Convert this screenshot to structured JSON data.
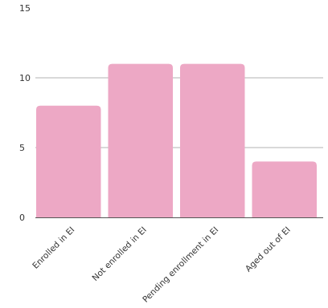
{
  "chart_data": {
    "type": "bar",
    "categories": [
      "Enrolled in EI",
      "Not enrolled in EI",
      "Pending enrollment in EI",
      "Aged out of EI"
    ],
    "values": [
      8,
      11,
      11,
      4
    ],
    "ylim": [
      0,
      15
    ],
    "yticks": [
      "0",
      "5",
      "10",
      "15"
    ],
    "grid": true,
    "title": "",
    "xlabel": "",
    "ylabel": "",
    "bar_color": "#eda8c5",
    "grid_color": "#b3b3b3",
    "axis_color": "#555555"
  }
}
